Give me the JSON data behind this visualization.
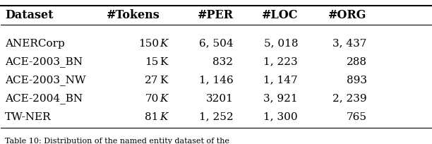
{
  "col_labels": [
    "Dataset",
    "#Tokens",
    "#PER",
    "#LOC",
    "#ORG"
  ],
  "dataset_col": [
    "ANERCorp",
    "ACE-2003_BN",
    "ACE-2003_NW",
    "ACE-2004_BN",
    "TW-NER"
  ],
  "tokens_num": [
    "150",
    "15",
    "27",
    "70",
    "81"
  ],
  "tokens_italic": [
    true,
    false,
    false,
    true,
    true
  ],
  "per_col": [
    "6, 504",
    "832",
    "1, 146",
    "3201",
    "1, 252"
  ],
  "loc_col": [
    "5, 018",
    "1, 223",
    "1, 147",
    "3, 921",
    "1, 300"
  ],
  "org_col": [
    "3, 437",
    "288",
    "893",
    "2, 239",
    "765"
  ],
  "bg_color": "#ffffff",
  "text_color": "#000000",
  "header_fontsize": 11.5,
  "body_fontsize": 11.0,
  "caption": "Table 10: Distribution of the named entity dataset of the"
}
